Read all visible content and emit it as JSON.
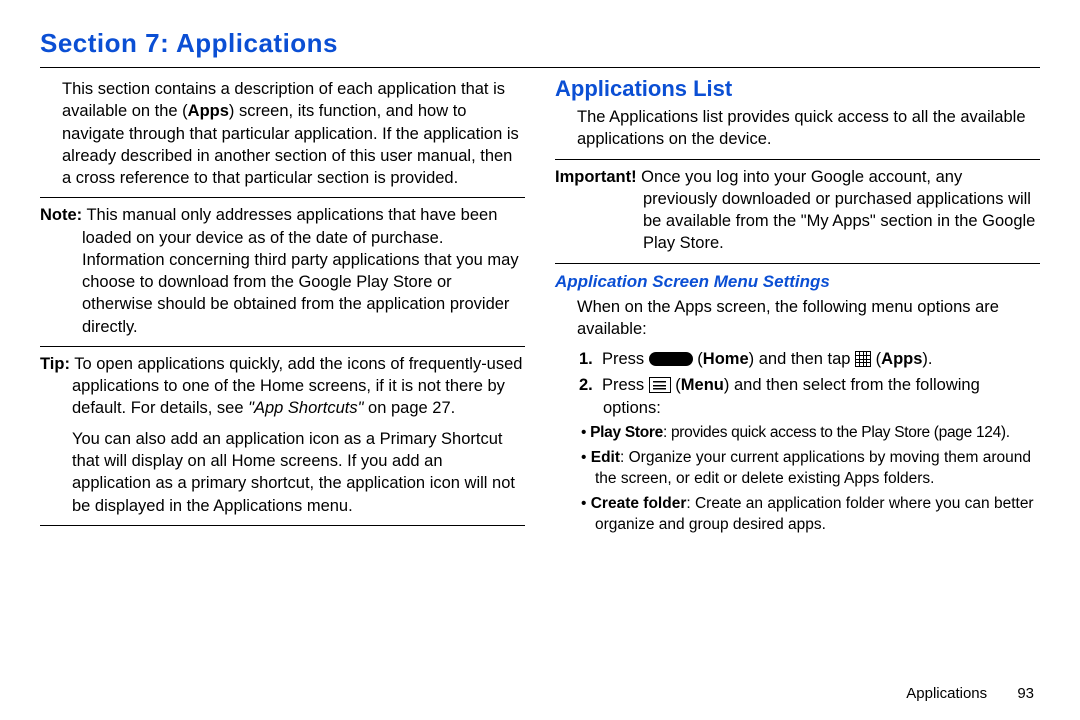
{
  "colors": {
    "heading": "#0b4fd4",
    "text": "#000000",
    "background": "#ffffff",
    "rule": "#000000"
  },
  "typography": {
    "body_fontsize_pt": 12,
    "h1_fontsize_pt": 20,
    "h2_fontsize_pt": 17,
    "h3_fontsize_pt": 13,
    "font_family": "Arial"
  },
  "section_title": "Section 7: Applications",
  "left": {
    "intro": "This section contains a description of each application that is available on the (",
    "intro_bold": "Apps",
    "intro_cont": ") screen, its function, and how to navigate through that particular application. If the application is already described in another section of this user manual, then a cross reference to that particular section is provided.",
    "note_label": "Note:",
    "note_text": " This manual only addresses applications that have been loaded on your device as of the date of purchase. Information concerning third party applications that you may choose to download from the Google Play Store or otherwise should be obtained from the application provider directly.",
    "tip_label": "Tip:",
    "tip_text": " To open applications quickly, add the icons of frequently-used applications to one of the Home screens, if it is not there by default. For details, see ",
    "tip_ref": "\"App Shortcuts\"",
    "tip_on": " on page 27.",
    "tip_para2": "You can also add an application icon as a Primary Shortcut that will display on all Home screens. If you add an application as a primary shortcut, the application icon will not be displayed in the Applications menu."
  },
  "right": {
    "h2": "Applications List",
    "intro": "The Applications list provides quick access to all the available applications on the device.",
    "important_label": "Important!",
    "important_text": " Once you log into your Google account, any previously downloaded or purchased applications will be available from the \"My Apps\" section in the Google Play Store.",
    "h3": "Application Screen Menu Settings",
    "menu_intro": "When on the Apps screen, the following menu options are available:",
    "step1_num": "1.",
    "step1_a": "Press ",
    "step1_home": "Home",
    "step1_mid": ") and then tap ",
    "step1_apps": "Apps",
    "step2_num": "2.",
    "step2_a": "Press ",
    "step2_menu": "Menu",
    "step2_b": ") and then select from the following options:",
    "bullets": [
      {
        "label": "Play Store",
        "text": ": provides quick access to the Play Store (page 124)."
      },
      {
        "label": "Edit",
        "text": ": Organize your current applications by moving them around the screen, or edit or delete existing Apps folders."
      },
      {
        "label": "Create folder",
        "text": ": Create an application folder where you can better organize and group desired apps."
      }
    ]
  },
  "footer": {
    "label": "Applications",
    "page": "93"
  }
}
